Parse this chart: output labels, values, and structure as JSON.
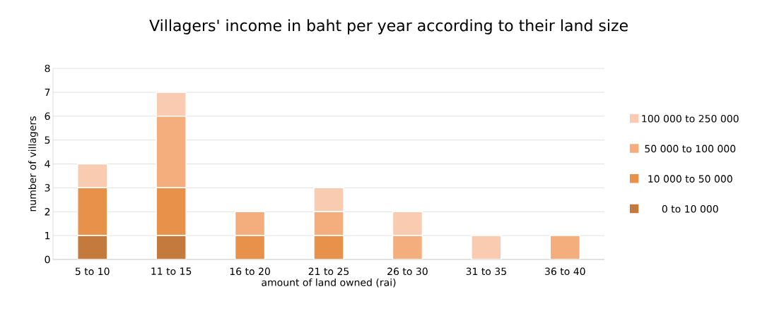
{
  "chart_data": {
    "type": "bar",
    "stacked": true,
    "title": "Villagers' income in baht per year according to their land size",
    "xlabel": "amount of land owned (rai)",
    "ylabel": "number of villagers",
    "categories": [
      "5 to 10",
      "11 to 15",
      "16 to 20",
      "21 to 25",
      "26 to 30",
      "31 to 35",
      "36 to 40"
    ],
    "series": [
      {
        "name": "0 to 10 000",
        "color": "#c4793d",
        "values": [
          1,
          1,
          0,
          0,
          0,
          0,
          0
        ]
      },
      {
        "name": "10 000 to 50 000",
        "color": "#e8914a",
        "values": [
          2,
          2,
          1,
          1,
          0,
          0,
          0
        ]
      },
      {
        "name": "50 000 to 100 000",
        "color": "#f4ad7d",
        "values": [
          0,
          3,
          1,
          1,
          1,
          0,
          1
        ]
      },
      {
        "name": "100 000 to 250 000",
        "color": "#f9cbb0",
        "values": [
          1,
          1,
          0,
          1,
          1,
          1,
          0
        ]
      }
    ],
    "ylim": [
      0,
      8
    ],
    "yticks": [
      0,
      1,
      2,
      3,
      4,
      5,
      6,
      7,
      8
    ],
    "grid": "y",
    "legend": "right"
  }
}
